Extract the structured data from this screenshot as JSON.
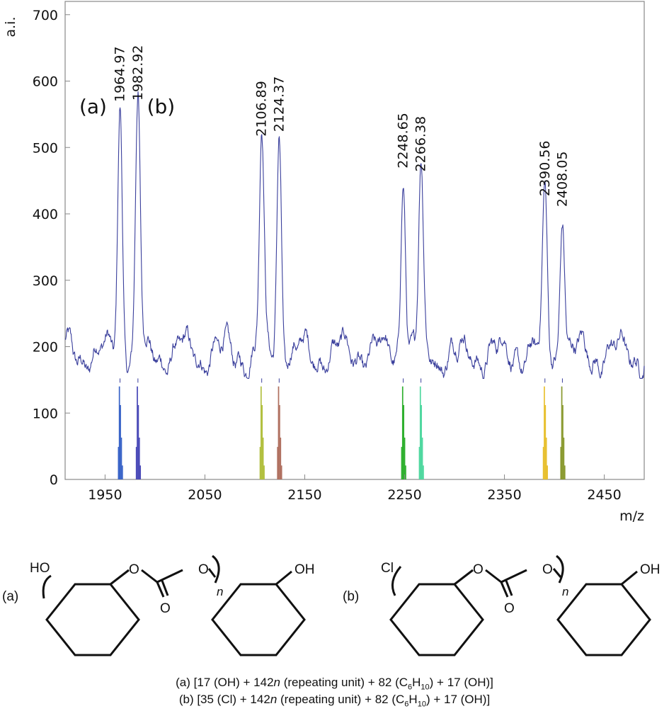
{
  "chart_data": {
    "type": "line",
    "ylabel": "a.i.",
    "xlabel": "m/z",
    "xlim": [
      1910,
      2490
    ],
    "ylim": [
      0,
      720
    ],
    "x_ticks": [
      1950,
      2050,
      2150,
      2250,
      2350,
      2450
    ],
    "y_ticks": [
      0,
      100,
      200,
      300,
      400,
      500,
      600,
      700
    ],
    "grid": false,
    "baseline": 150,
    "peaks": [
      {
        "label": "1964.97",
        "x": 1964.97,
        "y": 560
      },
      {
        "label": "1982.92",
        "x": 1982.92,
        "y": 562
      },
      {
        "label": "2106.89",
        "x": 2106.89,
        "y": 508
      },
      {
        "label": "2124.37",
        "x": 2124.37,
        "y": 515
      },
      {
        "label": "2248.65",
        "x": 2248.65,
        "y": 460
      },
      {
        "label": "2266.38",
        "x": 2266.38,
        "y": 455
      },
      {
        "label": "2390.56",
        "x": 2390.56,
        "y": 418
      },
      {
        "label": "2408.05",
        "x": 2408.05,
        "y": 402
      }
    ],
    "series_labels": [
      {
        "text": "(a)",
        "x": 1938,
        "y": 560
      },
      {
        "text": "(b)",
        "x": 2006,
        "y": 560
      }
    ],
    "isotope_bars": [
      {
        "x": 1964.97,
        "height": 140,
        "color": "#3a64c8"
      },
      {
        "x": 1982.92,
        "height": 140,
        "color": "#4a4ab8"
      },
      {
        "x": 2106.89,
        "height": 140,
        "color": "#b2c040"
      },
      {
        "x": 2124.37,
        "height": 140,
        "color": "#b07060"
      },
      {
        "x": 2248.65,
        "height": 140,
        "color": "#30b030"
      },
      {
        "x": 2266.38,
        "height": 140,
        "color": "#50d8a0"
      },
      {
        "x": 2390.56,
        "height": 140,
        "color": "#e8c030"
      },
      {
        "x": 2408.05,
        "height": 140,
        "color": "#8a9a30"
      }
    ],
    "line_color": "#3a3f9c"
  },
  "structures": {
    "a": {
      "label": "(a)",
      "left_group": "HO",
      "right_group": "OH",
      "carbonyl_o": "O",
      "ester_o1": "O",
      "ester_o2": "O",
      "subscript": "n"
    },
    "b": {
      "label": "(b)",
      "left_group": "Cl",
      "right_group": "OH",
      "carbonyl_o": "O",
      "ester_o1": "O",
      "ester_o2": "O",
      "subscript": "n"
    }
  },
  "captions": {
    "a": {
      "p1": "(a) [17 (OH) + 142",
      "n": "n",
      "p2": " (repeating unit) + 82 (C",
      "s1": "6",
      "p3": "H",
      "s2": "10",
      "p4": ") + 17 (OH)]"
    },
    "b": {
      "p1": "(b) [35 (Cl) + 142",
      "n": "n",
      "p2": " (repeating unit) + 82 (C",
      "s1": "6",
      "p3": "H",
      "s2": "10",
      "p4": ") + 17 (OH)]"
    }
  }
}
